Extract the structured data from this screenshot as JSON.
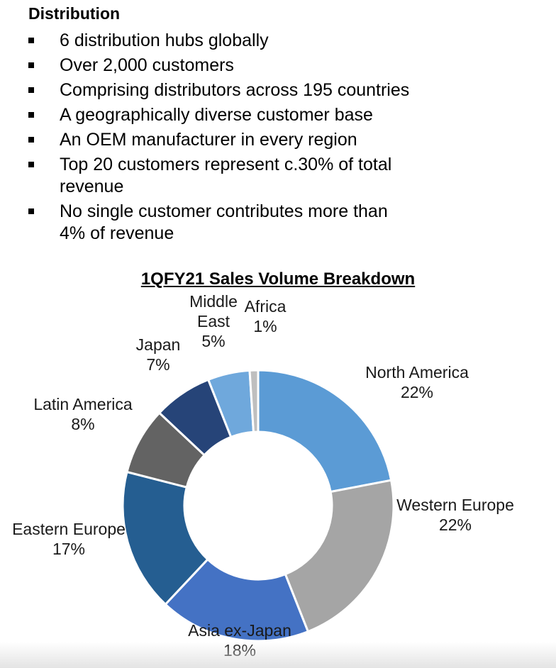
{
  "section": {
    "heading": "Distribution",
    "bullets": [
      [
        "6 distribution hubs globally"
      ],
      [
        "Over 2,000 customers"
      ],
      [
        "Comprising distributors across 195 countries"
      ],
      [
        "A geographically diverse customer base"
      ],
      [
        "An OEM manufacturer in every region"
      ],
      [
        "Top 20 customers represent c.30% of total",
        "revenue"
      ],
      [
        "No single customer contributes more than",
        "4% of revenue"
      ]
    ]
  },
  "chart_data": {
    "type": "pie",
    "donut": true,
    "title": "1QFY21 Sales Volume Breakdown",
    "categories": [
      "North America",
      "Western Europe",
      "Asia ex-Japan",
      "Eastern Europe",
      "Latin America",
      "Japan",
      "Middle East",
      "Africa"
    ],
    "values": [
      22,
      22,
      18,
      17,
      8,
      7,
      5,
      1
    ],
    "value_labels": [
      "22%",
      "22%",
      "18%",
      "17%",
      "8%",
      "7%",
      "5%",
      "1%"
    ],
    "colors": [
      "#5b9bd5",
      "#a5a5a5",
      "#4472c4",
      "#255e91",
      "#636363",
      "#264478",
      "#6fa8dc",
      "#bfbfbf"
    ],
    "label_lines": [
      [
        "North America"
      ],
      [
        "Western Europe"
      ],
      [
        "Asia ex-Japan"
      ],
      [
        "Eastern Europe"
      ],
      [
        "Latin America"
      ],
      [
        "Japan"
      ],
      [
        "Middle",
        "East"
      ],
      [
        "Africa"
      ]
    ]
  }
}
